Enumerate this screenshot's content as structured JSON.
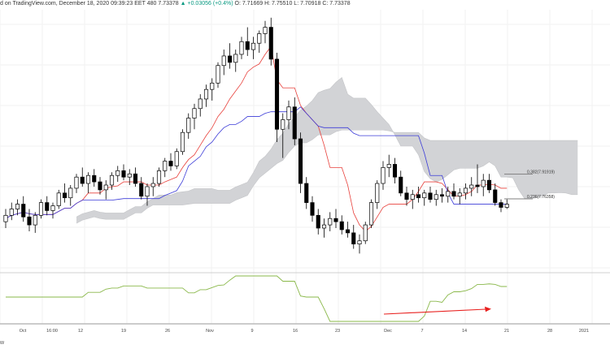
{
  "header": {
    "source": "d on TradingView.com, December 18, 2020 09:39:23 EET",
    "symbol_fragment": "480",
    "last": "7.73378",
    "change": "+0.03056 (+0.4%)",
    "ohlc_o": "O: 7.71669",
    "ohlc_h": "H: 7.75510",
    "ohlc_l": "L: 7.70918",
    "ohlc_c": "C: 7.73378",
    "up_arrow": "▲"
  },
  "footer": {
    "glyph": "w"
  },
  "colors": {
    "up_candle": "#ffffff",
    "down_candle": "#000000",
    "candle_border": "#000000",
    "tenkan": "#e8413c",
    "kijun": "#3c3cd8",
    "cloud": "#d2d3d6",
    "oscillator": "#8ab84a",
    "annotation_arrow": "#e8201e",
    "grid": "#f2f2f2",
    "axis_line": "#999999"
  },
  "chart_data": {
    "type": "candlestick",
    "x_tick_labels": [
      "Oct",
      "16:00",
      "12",
      "19",
      "26",
      "Nov",
      "9",
      "16",
      "23",
      "Dec",
      "7",
      "14",
      "21",
      "28",
      "2021"
    ],
    "fib_levels": [
      {
        "label": "0.382(7.91919)",
        "value": 7.91919
      },
      {
        "label": "0.236(7.76358)",
        "value": 7.76358
      }
    ],
    "grid": true,
    "indicators": [
      "Ichimoku cloud",
      "conversion line",
      "base line",
      "oscillator"
    ],
    "candles": [
      [
        7.62,
        7.7,
        7.58,
        7.66
      ],
      [
        7.66,
        7.74,
        7.63,
        7.7
      ],
      [
        7.7,
        7.76,
        7.66,
        7.73
      ],
      [
        7.73,
        7.78,
        7.62,
        7.65
      ],
      [
        7.65,
        7.7,
        7.56,
        7.6
      ],
      [
        7.6,
        7.68,
        7.55,
        7.66
      ],
      [
        7.66,
        7.76,
        7.64,
        7.74
      ],
      [
        7.74,
        7.78,
        7.66,
        7.69
      ],
      [
        7.69,
        7.74,
        7.64,
        7.72
      ],
      [
        7.72,
        7.82,
        7.7,
        7.8
      ],
      [
        7.8,
        7.86,
        7.74,
        7.77
      ],
      [
        7.77,
        7.85,
        7.72,
        7.83
      ],
      [
        7.83,
        7.92,
        7.8,
        7.9
      ],
      [
        7.9,
        7.96,
        7.84,
        7.86
      ],
      [
        7.86,
        7.93,
        7.8,
        7.91
      ],
      [
        7.91,
        7.95,
        7.84,
        7.87
      ],
      [
        7.87,
        7.9,
        7.79,
        7.82
      ],
      [
        7.82,
        7.88,
        7.76,
        7.85
      ],
      [
        7.85,
        7.93,
        7.82,
        7.91
      ],
      [
        7.91,
        7.97,
        7.87,
        7.94
      ],
      [
        7.94,
        7.98,
        7.88,
        7.9
      ],
      [
        7.9,
        7.95,
        7.85,
        7.92
      ],
      [
        7.92,
        7.96,
        7.84,
        7.86
      ],
      [
        7.86,
        7.9,
        7.76,
        7.78
      ],
      [
        7.78,
        7.86,
        7.72,
        7.84
      ],
      [
        7.84,
        7.9,
        7.78,
        7.86
      ],
      [
        7.86,
        7.96,
        7.84,
        7.94
      ],
      [
        7.94,
        8.02,
        7.9,
        8.0
      ],
      [
        8.0,
        8.05,
        7.94,
        7.97
      ],
      [
        7.97,
        8.08,
        7.95,
        8.06
      ],
      [
        8.06,
        8.2,
        8.04,
        8.18
      ],
      [
        8.18,
        8.3,
        8.14,
        8.27
      ],
      [
        8.27,
        8.36,
        8.2,
        8.33
      ],
      [
        8.33,
        8.42,
        8.28,
        8.39
      ],
      [
        8.39,
        8.48,
        8.34,
        8.45
      ],
      [
        8.45,
        8.52,
        8.38,
        8.49
      ],
      [
        8.49,
        8.62,
        8.46,
        8.6
      ],
      [
        8.6,
        8.7,
        8.54,
        8.66
      ],
      [
        8.66,
        8.74,
        8.58,
        8.62
      ],
      [
        8.62,
        8.7,
        8.56,
        8.67
      ],
      [
        8.67,
        8.78,
        8.64,
        8.75
      ],
      [
        8.75,
        8.84,
        8.66,
        8.7
      ],
      [
        8.7,
        8.78,
        8.64,
        8.74
      ],
      [
        8.74,
        8.82,
        8.68,
        8.8
      ],
      [
        8.8,
        8.88,
        8.74,
        8.84
      ],
      [
        8.84,
        8.9,
        8.6,
        8.64
      ],
      [
        8.64,
        8.68,
        8.12,
        8.2
      ],
      [
        8.2,
        8.3,
        8.02,
        8.26
      ],
      [
        8.26,
        8.38,
        8.2,
        8.34
      ],
      [
        8.34,
        8.4,
        8.1,
        8.14
      ],
      [
        8.14,
        8.18,
        7.8,
        7.86
      ],
      [
        7.86,
        7.9,
        7.7,
        7.74
      ],
      [
        7.74,
        7.78,
        7.62,
        7.66
      ],
      [
        7.66,
        7.7,
        7.54,
        7.58
      ],
      [
        7.58,
        7.64,
        7.52,
        7.6
      ],
      [
        7.6,
        7.68,
        7.56,
        7.64
      ],
      [
        7.64,
        7.7,
        7.58,
        7.62
      ],
      [
        7.62,
        7.66,
        7.54,
        7.57
      ],
      [
        7.57,
        7.62,
        7.52,
        7.55
      ],
      [
        7.55,
        7.6,
        7.45,
        7.48
      ],
      [
        7.48,
        7.54,
        7.42,
        7.5
      ],
      [
        7.5,
        7.62,
        7.48,
        7.6
      ],
      [
        7.6,
        7.76,
        7.58,
        7.74
      ],
      [
        7.74,
        7.88,
        7.7,
        7.86
      ],
      [
        7.86,
        8.0,
        7.82,
        7.96
      ],
      [
        7.96,
        8.04,
        7.9,
        7.98
      ],
      [
        7.98,
        8.02,
        7.86,
        7.9
      ],
      [
        7.9,
        7.94,
        7.78,
        7.8
      ],
      [
        7.8,
        7.84,
        7.72,
        7.76
      ],
      [
        7.76,
        7.82,
        7.7,
        7.79
      ],
      [
        7.79,
        7.84,
        7.74,
        7.77
      ],
      [
        7.77,
        7.82,
        7.72,
        7.8
      ],
      [
        7.8,
        7.84,
        7.74,
        7.76
      ],
      [
        7.76,
        7.82,
        7.72,
        7.79
      ],
      [
        7.79,
        7.83,
        7.74,
        7.78
      ],
      [
        7.78,
        7.84,
        7.74,
        7.81
      ],
      [
        7.81,
        7.86,
        7.76,
        7.78
      ],
      [
        7.78,
        7.83,
        7.73,
        7.8
      ],
      [
        7.8,
        7.86,
        7.76,
        7.83
      ],
      [
        7.83,
        7.9,
        7.78,
        7.85
      ],
      [
        7.85,
        7.98,
        7.8,
        7.84
      ],
      [
        7.84,
        7.92,
        7.78,
        7.88
      ],
      [
        7.88,
        7.92,
        7.8,
        7.82
      ],
      [
        7.82,
        7.86,
        7.72,
        7.74
      ],
      [
        7.74,
        7.76,
        7.68,
        7.71
      ],
      [
        7.71,
        7.76,
        7.7,
        7.73
      ]
    ]
  }
}
